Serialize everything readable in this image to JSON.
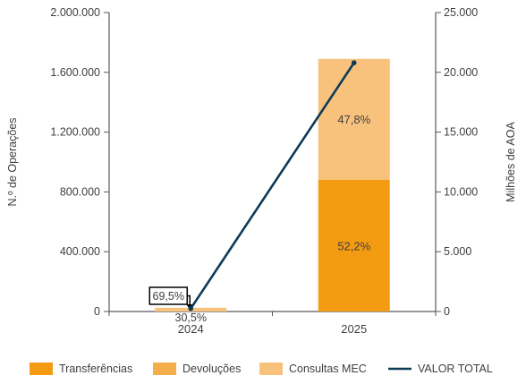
{
  "chart_data": {
    "type": "bar",
    "categories": [
      "2024",
      "2025"
    ],
    "stacked": true,
    "left_axis": {
      "label": "N.º de Operações",
      "ylim": [
        0,
        2000000
      ],
      "ticks": [
        0,
        400000,
        800000,
        1200000,
        1600000,
        2000000
      ],
      "tick_labels": [
        "0",
        "400.000",
        "800.000",
        "1.200.000",
        "1.600.000",
        "2.000.000"
      ]
    },
    "right_axis": {
      "label": "Milhões de AOA",
      "ylim": [
        0,
        25000
      ],
      "ticks": [
        0,
        5000,
        10000,
        15000,
        20000,
        25000
      ],
      "tick_labels": [
        "0",
        "5.000",
        "10.000",
        "15.000",
        "20.000",
        "25.000"
      ]
    },
    "series": [
      {
        "name": "Transferências",
        "kind": "bar",
        "axis": "left",
        "color": "#F39C12",
        "values": [
          0,
          882000
        ],
        "labels": [
          "",
          "52,2%"
        ]
      },
      {
        "name": "Devoluções",
        "kind": "bar",
        "axis": "left",
        "color": "#F5AE4C",
        "values": [
          0,
          0
        ],
        "labels": [
          "",
          ""
        ]
      },
      {
        "name": "Consultas MEC",
        "kind": "bar",
        "axis": "left",
        "color": "#F8C27D",
        "values": [
          25000,
          808000
        ],
        "labels": [
          "",
          "47,8%"
        ]
      },
      {
        "name": "VALOR TOTAL",
        "kind": "line",
        "axis": "right",
        "color": "#0F3A56",
        "values": [
          250,
          20800
        ]
      }
    ],
    "annotations": [
      {
        "category": "2024",
        "text": "69,5%",
        "boxed": true
      },
      {
        "category": "2024",
        "text": "30,5%",
        "boxed": false
      }
    ],
    "legend_position": "bottom",
    "grid": false
  }
}
